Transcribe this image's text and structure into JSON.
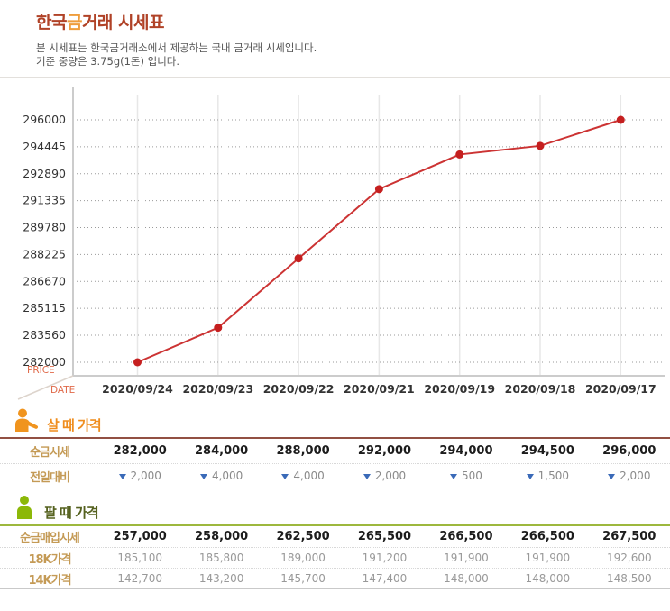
{
  "page": {
    "title_part1": "한국",
    "title_part2": "금",
    "title_part3": "거래 시세표",
    "subtitle_line1": "본 시세표는 한국금거래소에서 제공하는 국내 금거래 시세입니다.",
    "subtitle_line2": "기준 중량은 3.75g(1돈) 입니다."
  },
  "colors": {
    "title_red": "#b04227",
    "title_orange": "#ef9d3c",
    "chart_line": "#cc3333",
    "chart_dot": "#c51f1f",
    "axis_label_orange": "#e06a4a",
    "triangle_blue": "#3a6ab8",
    "buy_accent": "#ef8d1e",
    "sell_accent": "#8cb808",
    "row_label_tan": "#c49a55"
  },
  "chart_data": {
    "type": "line",
    "title": "",
    "xlabel": "DATE",
    "ylabel": "PRICE",
    "x": [
      "2020/09/24",
      "2020/09/23",
      "2020/09/22",
      "2020/09/21",
      "2020/09/19",
      "2020/09/18",
      "2020/09/17"
    ],
    "series": [
      {
        "name": "순금시세",
        "values": [
          282000,
          284000,
          288000,
          292000,
          294000,
          294500,
          296000
        ]
      }
    ],
    "y_ticks": [
      296000,
      294445,
      292890,
      291335,
      289780,
      288225,
      286670,
      285115,
      283560,
      282000
    ],
    "ylim": [
      282000,
      296000
    ],
    "grid": true,
    "legend": "none",
    "line_color": "#cc3333"
  },
  "buy_section": {
    "heading": "살 때 가격",
    "rows": [
      {
        "label": "순금시세",
        "type": "bold",
        "values": [
          "282,000",
          "284,000",
          "288,000",
          "292,000",
          "294,000",
          "294,500",
          "296,000"
        ]
      },
      {
        "label": "전일대비",
        "type": "change",
        "values": [
          "2,000",
          "4,000",
          "4,000",
          "2,000",
          "500",
          "1,500",
          "2,000"
        ]
      }
    ]
  },
  "sell_section": {
    "heading": "팔 때 가격",
    "rows": [
      {
        "label": "순금매입시세",
        "type": "bold",
        "values": [
          "257,000",
          "258,000",
          "262,500",
          "265,500",
          "266,500",
          "266,500",
          "267,500"
        ]
      },
      {
        "label": "18K가격",
        "type": "plain",
        "values": [
          "185,100",
          "185,800",
          "189,000",
          "191,200",
          "191,900",
          "191,900",
          "192,600"
        ]
      },
      {
        "label": "14K가격",
        "type": "plain",
        "values": [
          "142,700",
          "143,200",
          "145,700",
          "147,400",
          "148,000",
          "148,000",
          "148,500"
        ]
      }
    ]
  }
}
